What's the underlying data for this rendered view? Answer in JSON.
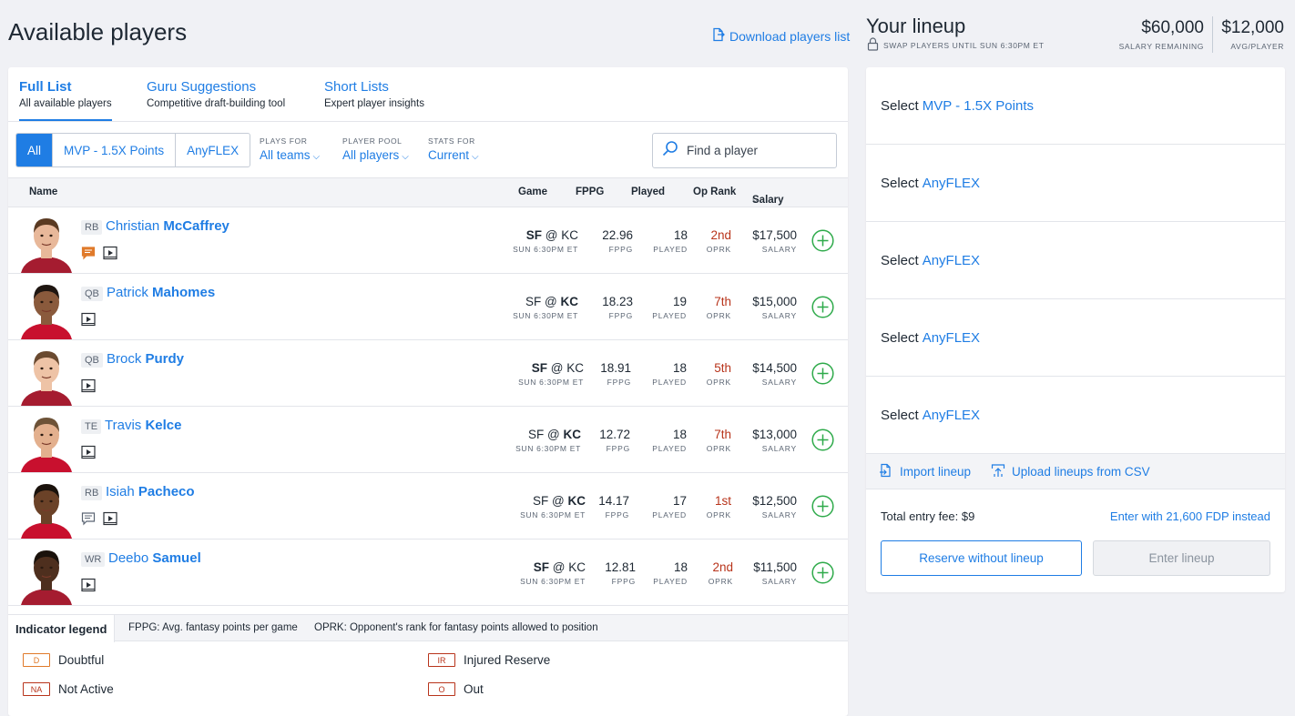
{
  "left": {
    "title": "Available players",
    "download_label": "Download players list"
  },
  "tabs": [
    {
      "label": "Full List",
      "sub": "All available players"
    },
    {
      "label": "Guru Suggestions",
      "sub": "Competitive draft-building tool"
    },
    {
      "label": "Short Lists",
      "sub": "Expert player insights"
    }
  ],
  "segments": [
    "All",
    "MVP - 1.5X Points",
    "AnyFLEX"
  ],
  "filters": [
    {
      "label": "PLAYS FOR",
      "value": "All teams"
    },
    {
      "label": "PLAYER POOL",
      "value": "All players"
    },
    {
      "label": "STATS FOR",
      "value": "Current"
    }
  ],
  "search": {
    "placeholder": "Find a player"
  },
  "columns": {
    "name": "Name",
    "game": "Game",
    "fppg": "FPPG",
    "played": "Played",
    "oprank": "Op Rank",
    "salary": "Salary"
  },
  "cell_labels": {
    "fppg": "FPPG",
    "played": "PLAYED",
    "oprk": "OPRK",
    "salary": "SALARY"
  },
  "players": [
    {
      "pos": "RB",
      "first": "Christian",
      "last": "McCaffrey",
      "away": "SF",
      "home": "KC",
      "bold": "away",
      "time": "SUN 6:30PM ET",
      "fppg": "22.96",
      "played": "18",
      "oprk": "2nd",
      "salary": "$17,500",
      "icons": [
        "news-icon",
        "video-icon"
      ],
      "news_color": "#e07a2a",
      "skin": "#e8b89a",
      "hair": "#5a3a22"
    },
    {
      "pos": "QB",
      "first": "Patrick",
      "last": "Mahomes",
      "away": "SF",
      "home": "KC",
      "bold": "home",
      "time": "SUN 6:30PM ET",
      "fppg": "18.23",
      "played": "19",
      "oprk": "7th",
      "salary": "$15,000",
      "icons": [
        "video-icon"
      ],
      "skin": "#8a5a3c",
      "hair": "#1f1611"
    },
    {
      "pos": "QB",
      "first": "Brock",
      "last": "Purdy",
      "away": "SF",
      "home": "KC",
      "bold": "away",
      "time": "SUN 6:30PM ET",
      "fppg": "18.91",
      "played": "18",
      "oprk": "5th",
      "salary": "$14,500",
      "icons": [
        "video-icon"
      ],
      "skin": "#eec3a6",
      "hair": "#6a4a30"
    },
    {
      "pos": "TE",
      "first": "Travis",
      "last": "Kelce",
      "away": "SF",
      "home": "KC",
      "bold": "home",
      "time": "SUN 6:30PM ET",
      "fppg": "12.72",
      "played": "18",
      "oprk": "7th",
      "salary": "$13,000",
      "icons": [
        "video-icon"
      ],
      "skin": "#e3b08e",
      "hair": "#6d5237"
    },
    {
      "pos": "RB",
      "first": "Isiah",
      "last": "Pacheco",
      "away": "SF",
      "home": "KC",
      "bold": "home",
      "time": "SUN 6:30PM ET",
      "fppg": "14.17",
      "played": "17",
      "oprk": "1st",
      "salary": "$12,500",
      "icons": [
        "news-icon",
        "video-icon"
      ],
      "news_color": "#5b6573",
      "skin": "#6b4228",
      "hair": "#1a120c"
    },
    {
      "pos": "WR",
      "first": "Deebo",
      "last": "Samuel",
      "away": "SF",
      "home": "KC",
      "bold": "away",
      "time": "SUN 6:30PM ET",
      "fppg": "12.81",
      "played": "18",
      "oprk": "2nd",
      "salary": "$11,500",
      "icons": [
        "video-icon"
      ],
      "skin": "#4e2f1e",
      "hair": "#1a120c"
    }
  ],
  "legend": {
    "tab": "Indicator legend",
    "note1": "FPPG: Avg. fantasy points per game",
    "note2": "OPRK: Opponent's rank for fantasy points allowed to position",
    "items": [
      {
        "code": "D",
        "label": "Doubtful",
        "color": "orange"
      },
      {
        "code": "IR",
        "label": "Injured Reserve",
        "color": "red"
      },
      {
        "code": "NA",
        "label": "Not Active",
        "color": "red"
      },
      {
        "code": "O",
        "label": "Out",
        "color": "red"
      }
    ]
  },
  "right": {
    "title": "Your lineup",
    "swap_note": "SWAP PLAYERS UNTIL SUN 6:30PM ET",
    "salary_remaining": "$60,000",
    "salary_remaining_label": "SALARY REMAINING",
    "avg_player": "$12,000",
    "avg_player_label": "AVG/PLAYER",
    "select_word": "Select",
    "slots": [
      "MVP - 1.5X Points",
      "AnyFLEX",
      "AnyFLEX",
      "AnyFLEX",
      "AnyFLEX"
    ],
    "import_label": "Import lineup",
    "upload_label": "Upload lineups from CSV",
    "fee": "Total entry fee: $9",
    "fdp": "Enter with 21,600 FDP instead",
    "reserve_label": "Reserve without lineup",
    "enter_label": "Enter lineup"
  },
  "colors": {
    "accent": "#1f7de4",
    "rank_red": "#b8341b",
    "add_green": "#2eaa4a",
    "background": "#f0f1f5"
  }
}
